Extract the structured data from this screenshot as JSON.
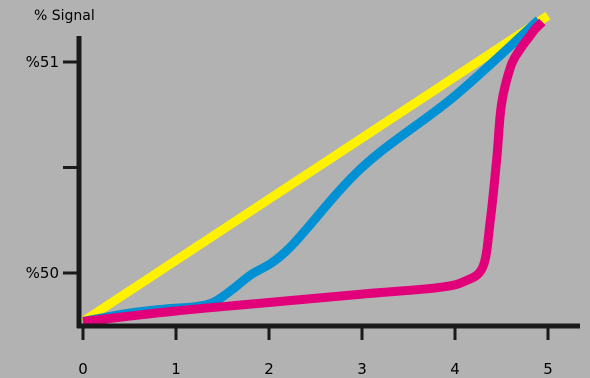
{
  "chart_data": {
    "type": "line",
    "title": "",
    "ylabel": "% Signal",
    "xlabel": "",
    "xlim": [
      0,
      5
    ],
    "ylim": [
      49.75,
      51.2
    ],
    "x_ticks": [
      0,
      1,
      2,
      3,
      4,
      5
    ],
    "x_tick_labels": [
      "0",
      "1",
      "2",
      "3",
      "4",
      "5"
    ],
    "y_ticks": [
      50,
      50.5,
      51
    ],
    "y_tick_labels": [
      "%50",
      "",
      "%51"
    ],
    "grid": false,
    "legend": "none",
    "background_color": "#b2b2b2",
    "axis_color": "#1a1a1a",
    "series": [
      {
        "color": "#fff200",
        "x": [
          0,
          5
        ],
        "y": [
          49.77,
          51.22
        ]
      },
      {
        "color": "#0091d5",
        "x": [
          0,
          0.5,
          0.9,
          1.2,
          1.4,
          1.6,
          1.8,
          2.2,
          3.0,
          4.0,
          4.9
        ],
        "y": [
          49.77,
          49.81,
          49.83,
          49.84,
          49.86,
          49.92,
          49.99,
          50.11,
          50.5,
          50.84,
          51.2
        ]
      },
      {
        "color": "#e2007a",
        "x": [
          0,
          1,
          2,
          3,
          3.8,
          4.1,
          4.3,
          4.38,
          4.45,
          4.5,
          4.6,
          4.7,
          4.8,
          4.87,
          4.94
        ],
        "y": [
          49.77,
          49.82,
          49.86,
          49.9,
          49.93,
          49.96,
          50.03,
          50.25,
          50.55,
          50.8,
          50.98,
          51.06,
          51.12,
          51.16,
          51.19
        ]
      }
    ]
  }
}
